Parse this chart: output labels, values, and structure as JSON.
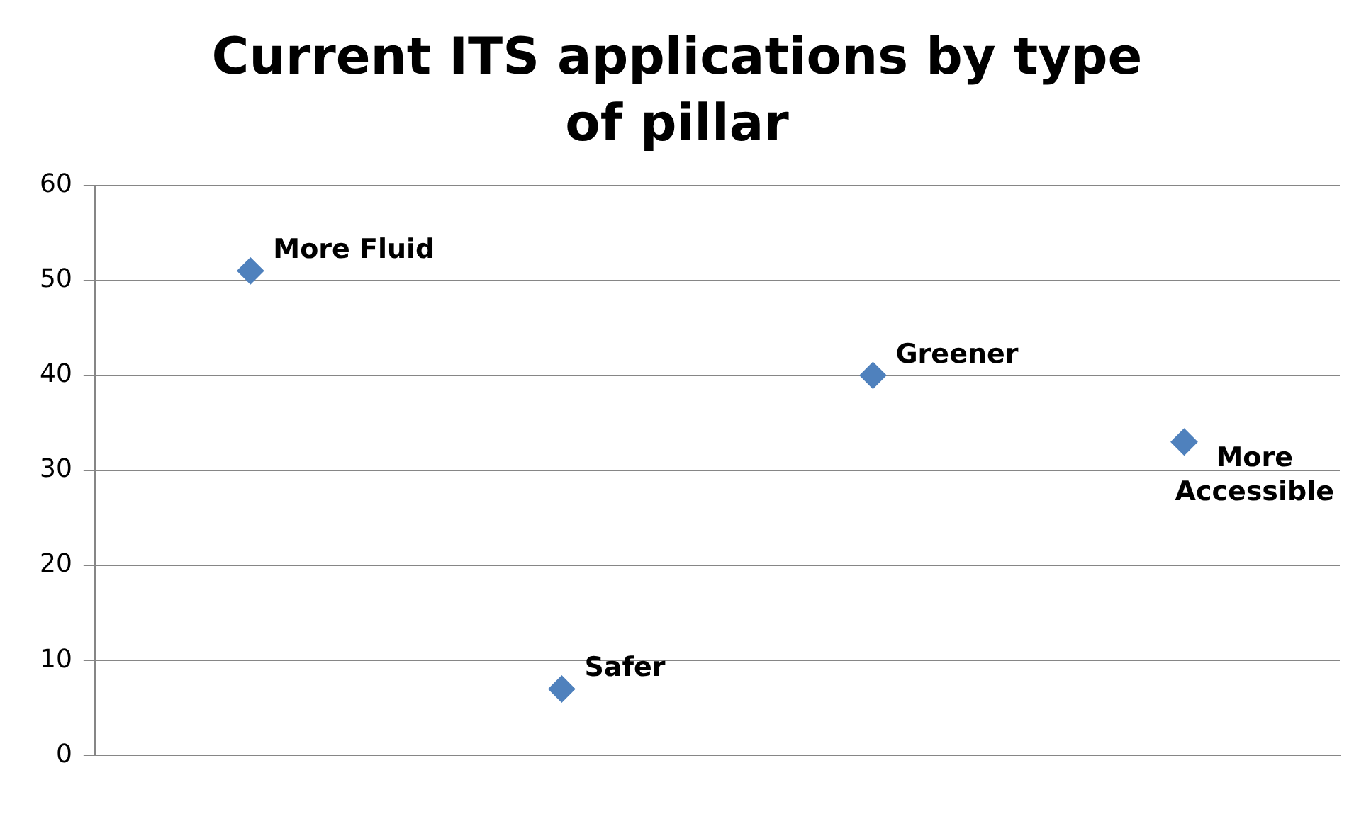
{
  "chart_data": {
    "type": "scatter",
    "title": "Current  ITS applications by type of pillar",
    "categories": [
      null,
      null,
      null,
      null
    ],
    "series": [
      {
        "color": "#4f81bd",
        "values": [
          51,
          7,
          40,
          33
        ],
        "value_labels": [
          "More Fluid",
          "Safer",
          "Greener",
          "More Accessible"
        ]
      }
    ],
    "ylim": [
      0,
      60
    ],
    "yticks": [
      0,
      10,
      20,
      30,
      40,
      50,
      60
    ],
    "tick_labels": "y",
    "grid": "y",
    "legend": false,
    "marker": "diamond"
  }
}
